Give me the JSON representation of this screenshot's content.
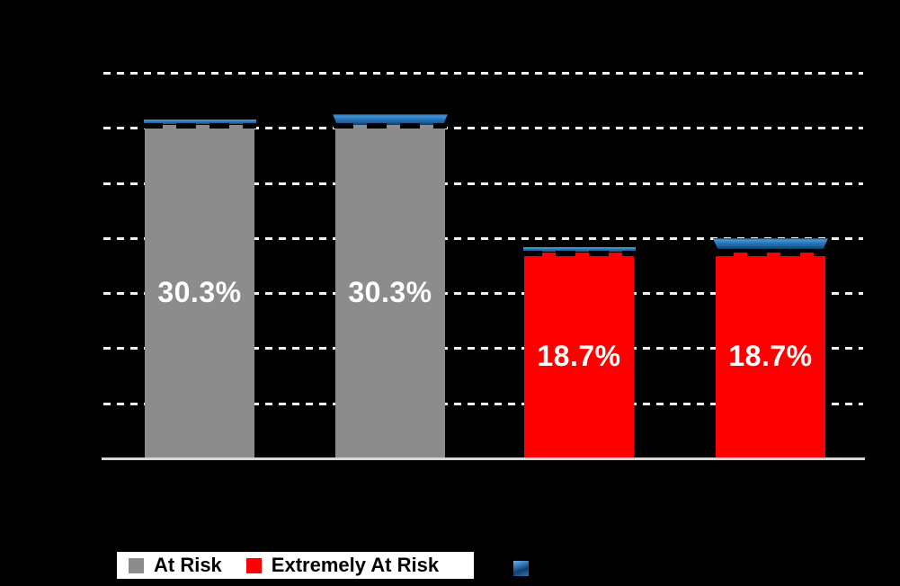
{
  "chart_data": {
    "type": "bar",
    "title": "",
    "background_color": "#000000",
    "plot": {
      "ylim": [
        0,
        35
      ],
      "gridline_step": 5,
      "grid": true,
      "gridline_style": "dashed",
      "gridline_color": "#FFFFFF",
      "axis_color": "#D6D6D6",
      "tick_labels_visible": false
    },
    "bars": [
      {
        "value": 30.3,
        "label": "30.3%",
        "series": "At Risk",
        "color": "#8C8C8C",
        "cap_style": "thin",
        "cap_lift": 0
      },
      {
        "value": 30.3,
        "label": "30.3%",
        "series": "At Risk",
        "color": "#8C8C8C",
        "cap_style": "beveled",
        "cap_lift": 0
      },
      {
        "value": 18.7,
        "label": "18.7%",
        "series": "Extremely At Risk",
        "color": "#FE0000",
        "cap_style": "thin",
        "cap_lift": 0
      },
      {
        "value": 18.7,
        "label": "18.7%",
        "series": "Extremely At Risk",
        "color": "#FE0000",
        "cap_style": "beveled",
        "cap_lift": 4
      }
    ],
    "markers": {
      "dash_line_color": "#000000",
      "cap_color": "#2E75B6"
    },
    "legend": {
      "position": "bottom",
      "background": "#FFFFFF",
      "items": [
        {
          "label": "At Risk",
          "color": "#8C8C8C"
        },
        {
          "label": "Extremely At Risk",
          "color": "#FE0000"
        },
        {
          "label": "",
          "color": "#2E75B6"
        }
      ]
    }
  }
}
